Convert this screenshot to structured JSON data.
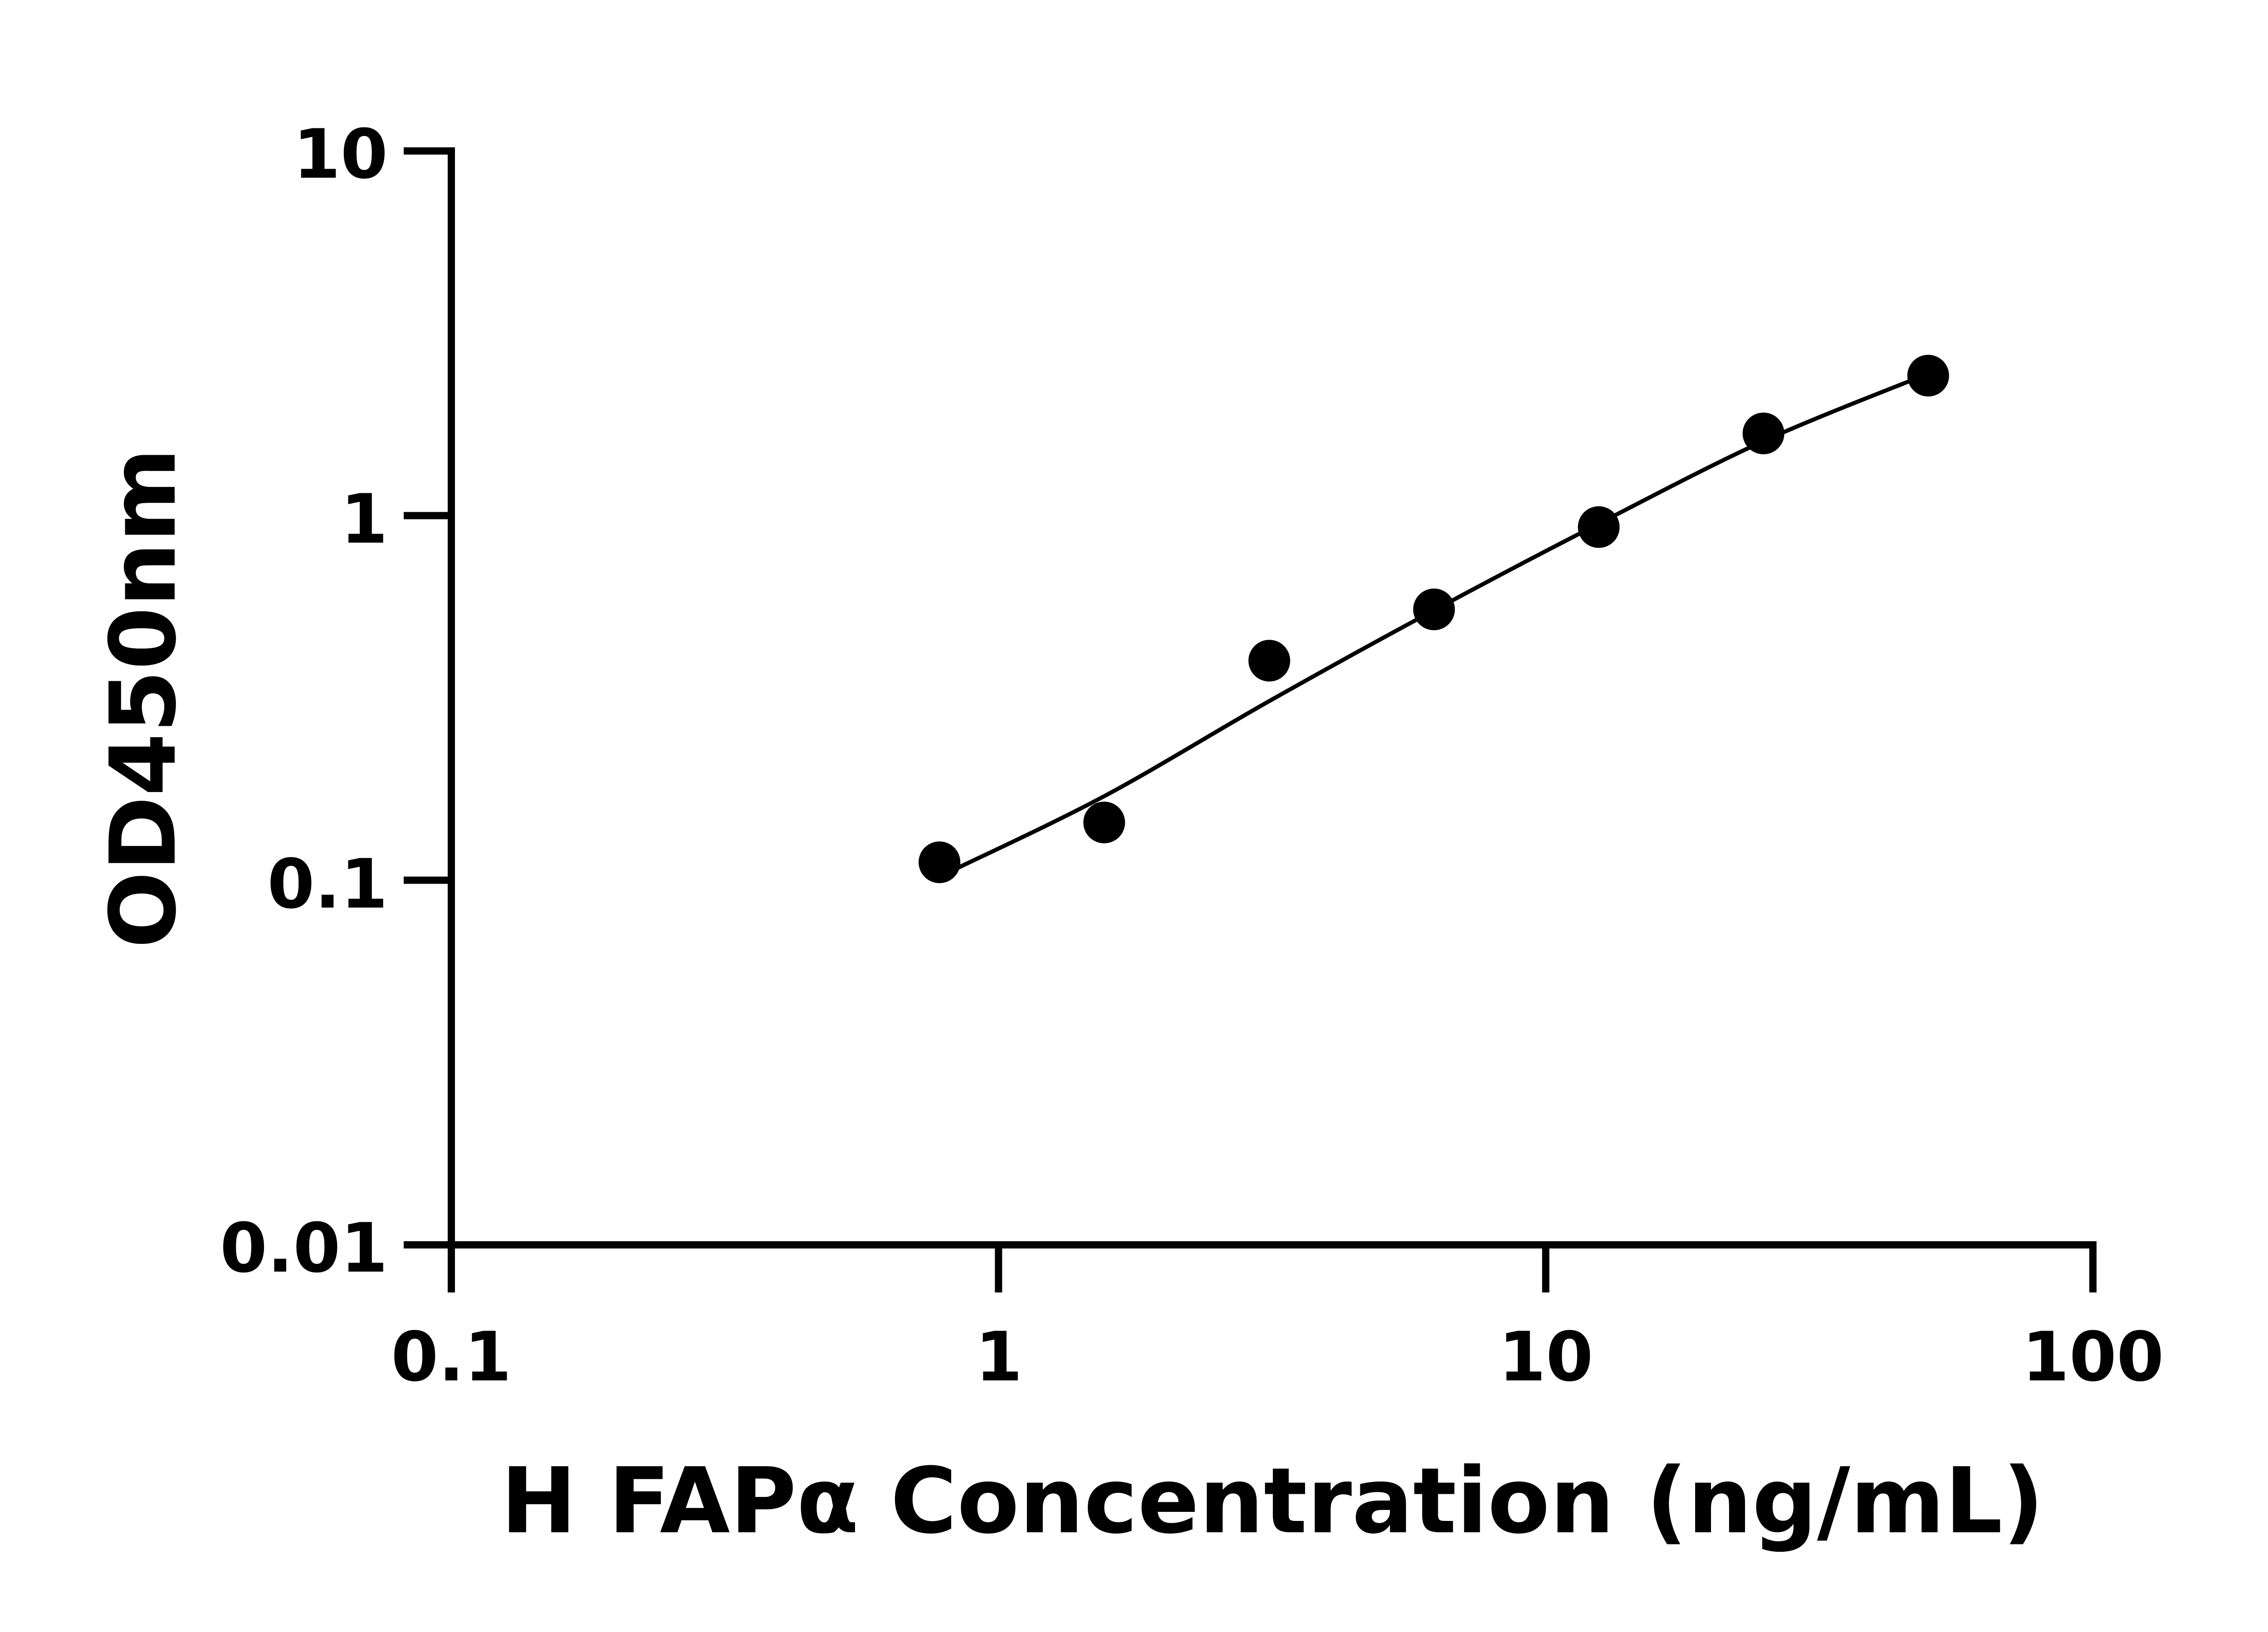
{
  "chart_data": {
    "type": "scatter",
    "title": "",
    "xlabel": "H FAPα Concentration (ng/mL)",
    "ylabel": "OD450nm",
    "xscale": "log",
    "yscale": "log",
    "xlim": [
      0.1,
      100
    ],
    "ylim": [
      0.01,
      10
    ],
    "xticks": [
      "0.1",
      "1",
      "10",
      "100"
    ],
    "yticks": [
      "0.01",
      "0.1",
      "1",
      "10"
    ],
    "grid": false,
    "legend": "none",
    "colors": {
      "points": "#000000",
      "curve": "#000000",
      "axes": "#000000"
    },
    "points": {
      "x": [
        0.78,
        1.56,
        3.125,
        6.25,
        12.5,
        25,
        50
      ],
      "y": [
        0.112,
        0.144,
        0.4,
        0.553,
        0.93,
        1.68,
        2.42
      ]
    },
    "fit_curve": {
      "x": [
        0.82,
        1.56,
        3.125,
        6.25,
        12.5,
        25,
        50
      ],
      "y": [
        0.106,
        0.17,
        0.31,
        0.55,
        0.95,
        1.6,
        2.45
      ]
    }
  }
}
